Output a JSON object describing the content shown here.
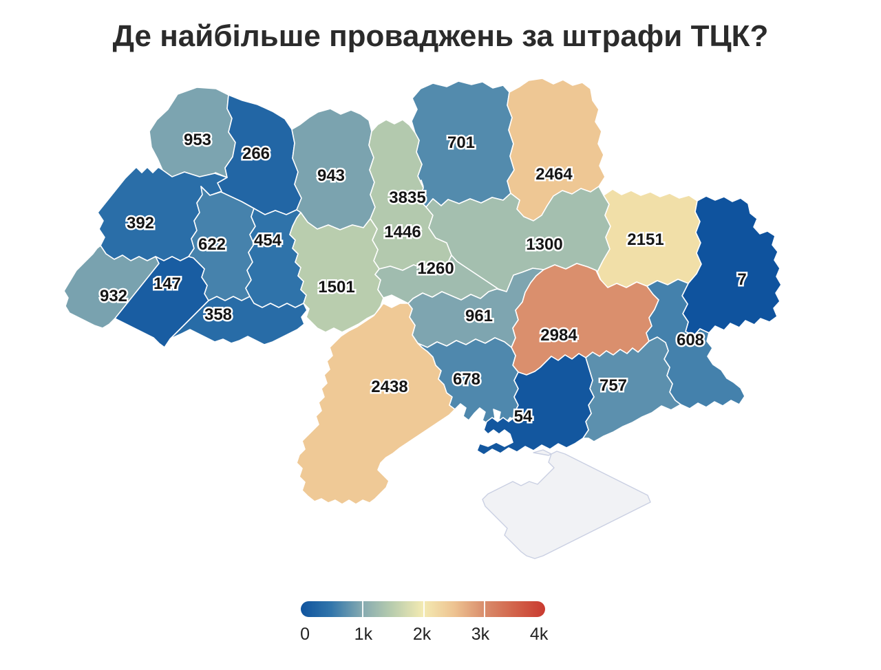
{
  "title": "Де найбільше проваджень за штрафи ТЦК?",
  "chart_data": {
    "type": "choropleth",
    "title": "Де найбільше проваджень за штрафи ТЦК?",
    "geography": "Ukraine oblasts",
    "regions": [
      {
        "name": "volyn",
        "value": 953
      },
      {
        "name": "rivne",
        "value": 266
      },
      {
        "name": "zhytomyr",
        "value": 943
      },
      {
        "name": "chernihiv",
        "value": 701
      },
      {
        "name": "sumy",
        "value": 2464
      },
      {
        "name": "kyiv-city",
        "value": 3835
      },
      {
        "name": "kyiv-oblast",
        "value": 1446
      },
      {
        "name": "lviv",
        "value": 392
      },
      {
        "name": "ternopil",
        "value": 622
      },
      {
        "name": "khmelnytskyi",
        "value": 454
      },
      {
        "name": "vinnytsia",
        "value": 1501
      },
      {
        "name": "zakarpattia",
        "value": 932
      },
      {
        "name": "ivano-frankivsk",
        "value": 147
      },
      {
        "name": "chernivtsi",
        "value": 358
      },
      {
        "name": "cherkasy",
        "value": 1260
      },
      {
        "name": "poltava",
        "value": 1300
      },
      {
        "name": "kharkiv",
        "value": 2151
      },
      {
        "name": "luhansk",
        "value": 7
      },
      {
        "name": "kirovohrad",
        "value": 961
      },
      {
        "name": "dnipro",
        "value": 2984
      },
      {
        "name": "donetsk",
        "value": 608
      },
      {
        "name": "odesa",
        "value": 2438
      },
      {
        "name": "mykolaiv",
        "value": 678
      },
      {
        "name": "zaporizhzhia",
        "value": 757
      },
      {
        "name": "kherson",
        "value": 54
      },
      {
        "name": "crimea",
        "value": null,
        "no_data": true
      }
    ],
    "colorscale": {
      "domain": [
        0,
        4000
      ],
      "stops": [
        [
          0.0,
          "#0f539e"
        ],
        [
          0.125,
          "#3276ab"
        ],
        [
          0.25,
          "#84a9b0"
        ],
        [
          0.375,
          "#b9cdae"
        ],
        [
          0.5,
          "#f3eab2"
        ],
        [
          0.625,
          "#eec492"
        ],
        [
          0.75,
          "#d98d6c"
        ],
        [
          0.875,
          "#d2634a"
        ],
        [
          1.0,
          "#c93a30"
        ]
      ],
      "no_data_fill": "#f1f2f5",
      "no_data_border": "#c9cfe2"
    },
    "legend": {
      "ticks": [
        "0",
        "1k",
        "2k",
        "3k",
        "4k"
      ],
      "tick_values": [
        0,
        1000,
        2000,
        3000,
        4000
      ],
      "tick_positions_pct": [
        1.7,
        25.6,
        49.6,
        73.5,
        97.5
      ],
      "separator_positions_pct": [
        25,
        50,
        75
      ],
      "position": "bottom-center"
    },
    "grid": false
  }
}
